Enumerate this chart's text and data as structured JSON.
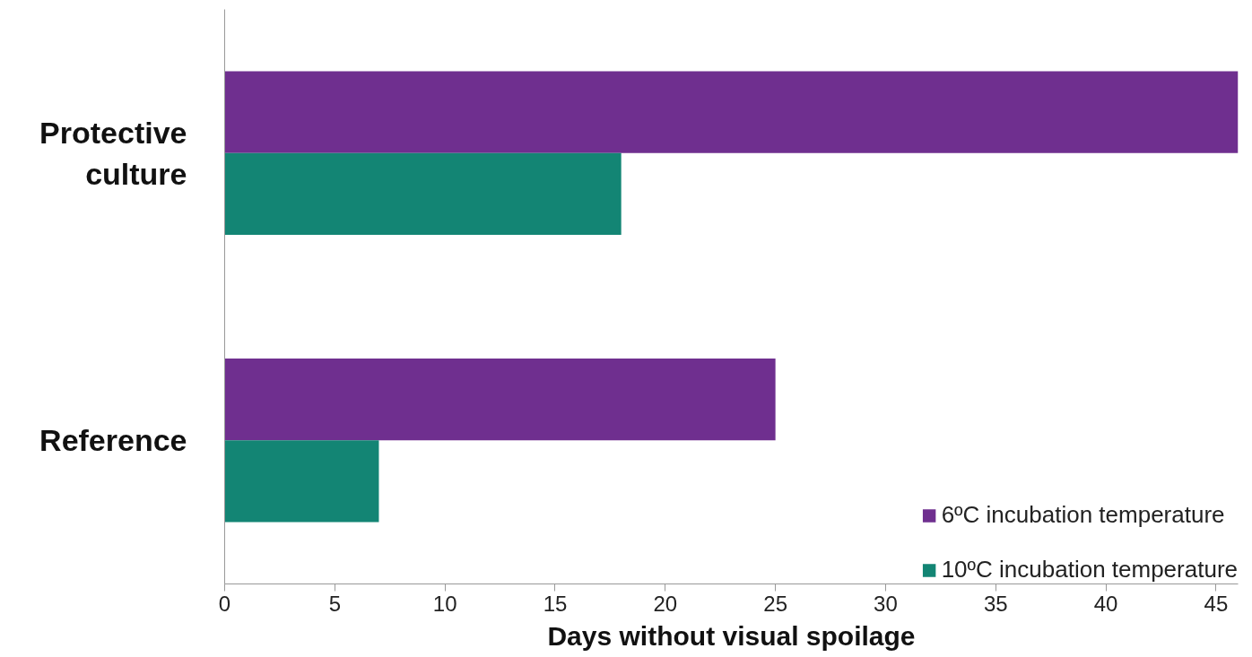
{
  "chart_data": {
    "type": "bar",
    "orientation": "horizontal",
    "xlabel": "Days without visual spoilage",
    "categories": [
      "Protective culture",
      "Reference"
    ],
    "series": [
      {
        "name": "6ºC incubation temperature",
        "color": "#6f2f8f",
        "values": [
          46,
          25
        ]
      },
      {
        "name": "10ºC incubation temperature",
        "color": "#138574",
        "values": [
          18,
          7
        ]
      }
    ],
    "xlim": [
      0,
      46
    ],
    "xticks": [
      0,
      5,
      10,
      15,
      20,
      25,
      30,
      35,
      40,
      45
    ],
    "grid": false,
    "legend": "bottom right"
  }
}
